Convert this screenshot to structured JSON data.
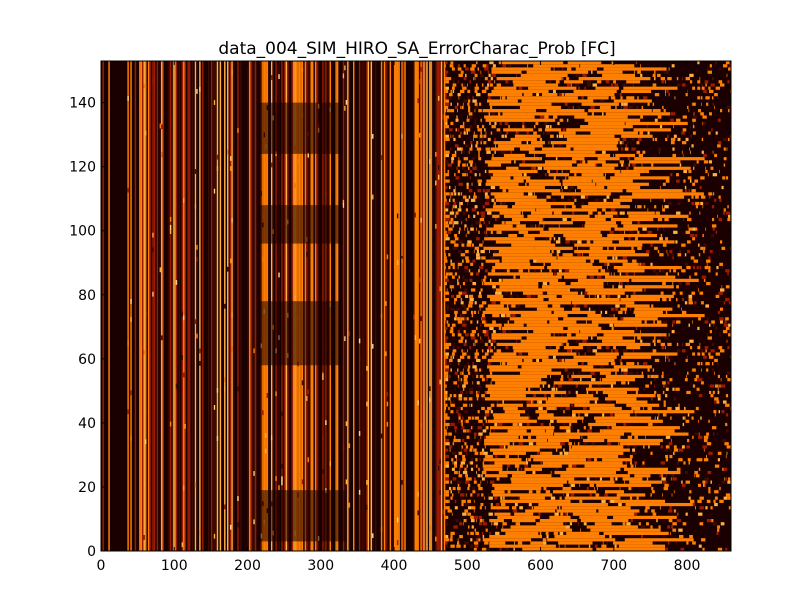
{
  "chart_data": {
    "type": "heatmap",
    "title": "data_004_SIM_HIRO_SA_ErrorCharac_Prob [FC]",
    "xlabel": "",
    "ylabel": "",
    "xlim": [
      0,
      860
    ],
    "ylim": [
      0,
      153
    ],
    "x_ticks": [
      0,
      100,
      200,
      300,
      400,
      500,
      600,
      700,
      800
    ],
    "y_ticks": [
      0,
      20,
      40,
      60,
      80,
      100,
      120,
      140
    ],
    "grid": false,
    "colormap": "hot",
    "colors": {
      "background": "#1a0000",
      "dark_red": "#3d0a00",
      "red": "#9b1a00",
      "orange": "#ff7f00",
      "light_orange": "#ffb040",
      "pale": "#ffd080"
    },
    "description_bands": {
      "vertical_stripe_region_x": [
        0,
        470
      ],
      "scattered_horizontal_region_x": [
        470,
        860
      ]
    }
  }
}
